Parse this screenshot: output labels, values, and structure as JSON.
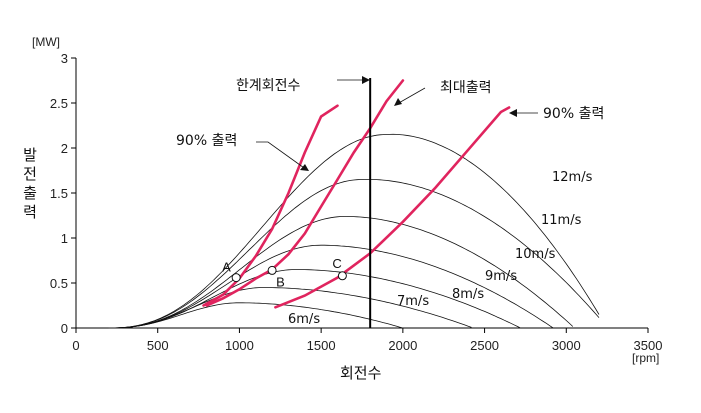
{
  "chart_data": {
    "type": "line",
    "xlabel": "회전수",
    "ylabel": "발전출력",
    "x_unit": "[rpm]",
    "y_unit": "[MW]",
    "xlim": [
      0,
      3500
    ],
    "ylim": [
      0,
      3
    ],
    "x_ticks": [
      0,
      500,
      1000,
      1500,
      2000,
      2500,
      3000,
      3500
    ],
    "y_ticks": [
      0,
      0.5,
      1,
      1.5,
      2,
      2.5,
      3
    ],
    "grid": false,
    "wind_curves": [
      {
        "label": "6m/s",
        "peak_rpm": 1000,
        "peak_mw": 0.28,
        "end_rpm": 2000
      },
      {
        "label": "7m/s",
        "peak_rpm": 1150,
        "peak_mw": 0.45,
        "end_rpm": 2430
      },
      {
        "label": "8m/s",
        "peak_rpm": 1350,
        "peak_mw": 0.65,
        "end_rpm": 2720
      },
      {
        "label": "9m/s",
        "peak_rpm": 1500,
        "peak_mw": 0.92,
        "end_rpm": 2920
      },
      {
        "label": "10m/s",
        "peak_rpm": 1650,
        "peak_mw": 1.24,
        "end_rpm": 3050
      },
      {
        "label": "11m/s",
        "peak_rpm": 1750,
        "peak_mw": 1.65,
        "end_rpm": 3200
      },
      {
        "label": "12m/s",
        "peak_rpm": 1900,
        "peak_mw": 2.15,
        "end_rpm": 3200
      }
    ],
    "red_curves": [
      {
        "id": "left-90",
        "points": [
          [
            780,
            0.25
          ],
          [
            900,
            0.37
          ],
          [
            1000,
            0.55
          ],
          [
            1100,
            0.8
          ],
          [
            1200,
            1.1
          ],
          [
            1300,
            1.5
          ],
          [
            1400,
            1.95
          ],
          [
            1500,
            2.35
          ],
          [
            1600,
            2.47
          ]
        ]
      },
      {
        "id": "max",
        "points": [
          [
            800,
            0.25
          ],
          [
            900,
            0.33
          ],
          [
            1000,
            0.43
          ],
          [
            1100,
            0.55
          ],
          [
            1200,
            0.65
          ],
          [
            1300,
            0.82
          ],
          [
            1400,
            1.05
          ],
          [
            1500,
            1.35
          ],
          [
            1600,
            1.65
          ],
          [
            1700,
            1.95
          ],
          [
            1800,
            2.22
          ],
          [
            1900,
            2.52
          ],
          [
            2000,
            2.75
          ]
        ]
      },
      {
        "id": "right-90",
        "points": [
          [
            1220,
            0.23
          ],
          [
            1400,
            0.36
          ],
          [
            1600,
            0.56
          ],
          [
            1800,
            0.83
          ],
          [
            2000,
            1.18
          ],
          [
            2200,
            1.56
          ],
          [
            2400,
            1.98
          ],
          [
            2600,
            2.4
          ],
          [
            2650,
            2.45
          ]
        ]
      }
    ],
    "limit_line": {
      "x": 1800,
      "label": "한계회전수"
    },
    "points": [
      {
        "label": "A",
        "x": 980,
        "y": 0.56
      },
      {
        "label": "B",
        "x": 1200,
        "y": 0.64
      },
      {
        "label": "C",
        "x": 1630,
        "y": 0.58
      }
    ],
    "annotations": {
      "left_90": "90% 출력",
      "max": "최대출력",
      "right_90": "90% 출력",
      "limit": "한계회전수"
    }
  }
}
